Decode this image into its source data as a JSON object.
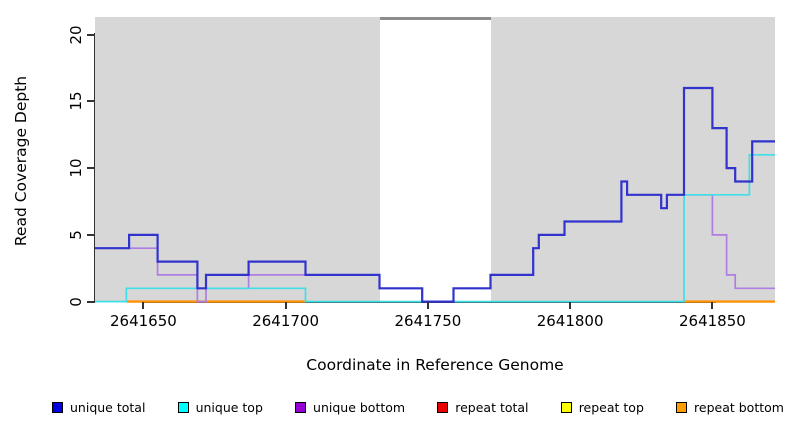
{
  "chart_data": {
    "type": "line",
    "subtype": "step-coverage-plot",
    "title": "",
    "xlabel": "Coordinate in Reference Genome",
    "ylabel": "Read Coverage Depth",
    "xlim": [
      2641633,
      2641872
    ],
    "ylim": [
      0,
      21.3
    ],
    "grid": false,
    "plot_background": "#d7d7d7",
    "gap_region": {
      "start": 2641733,
      "end": 2641772,
      "fill": "#ffffff",
      "cap_color": "#8c8c8c"
    },
    "zero_line_color": "#90d790",
    "xticks": [
      2641650,
      2641700,
      2641750,
      2641800,
      2641850
    ],
    "xtick_labels": [
      "2641650",
      "2641700",
      "2641750",
      "2641800",
      "2641850"
    ],
    "yticks": [
      0,
      5,
      10,
      15,
      20
    ],
    "ytick_labels": [
      "0",
      "5",
      "10",
      "15",
      "20"
    ],
    "series": [
      {
        "name": "unique total",
        "line_color": "#3232cd",
        "line_width": 2.2,
        "steps": [
          [
            2641633,
            4
          ],
          [
            2641645,
            5
          ],
          [
            2641655,
            3
          ],
          [
            2641669,
            1
          ],
          [
            2641672,
            2
          ],
          [
            2641687,
            3
          ],
          [
            2641707,
            2
          ],
          [
            2641733,
            1
          ],
          [
            2641748,
            0
          ],
          [
            2641759,
            1
          ],
          [
            2641772,
            2
          ],
          [
            2641787,
            4
          ],
          [
            2641789,
            5
          ],
          [
            2641798,
            6
          ],
          [
            2641818,
            9
          ],
          [
            2641820,
            8
          ],
          [
            2641832,
            7
          ],
          [
            2641834,
            8
          ],
          [
            2641840,
            16
          ],
          [
            2641850,
            13
          ],
          [
            2641855,
            10
          ],
          [
            2641858,
            9
          ],
          [
            2641864,
            12
          ]
        ]
      },
      {
        "name": "unique top",
        "line_color": "#3fdfe8",
        "line_width": 1.7,
        "steps": [
          [
            2641633,
            0
          ],
          [
            2641644,
            1
          ],
          [
            2641707,
            0
          ],
          [
            2641840,
            8
          ],
          [
            2641863,
            11
          ]
        ]
      },
      {
        "name": "unique bottom",
        "line_color": "#af7de4",
        "line_width": 1.7,
        "steps": [
          [
            2641633,
            4
          ],
          [
            2641655,
            2
          ],
          [
            2641669,
            0
          ],
          [
            2641672,
            1
          ],
          [
            2641687,
            2
          ],
          [
            2641733,
            1
          ],
          [
            2641748,
            0
          ],
          [
            2641759,
            1
          ],
          [
            2641772,
            2
          ],
          [
            2641787,
            4
          ],
          [
            2641789,
            5
          ],
          [
            2641798,
            6
          ],
          [
            2641818,
            9
          ],
          [
            2641820,
            8
          ],
          [
            2641832,
            7
          ],
          [
            2641834,
            8
          ],
          [
            2641850,
            5
          ],
          [
            2641855,
            2
          ],
          [
            2641858,
            1
          ]
        ]
      },
      {
        "name": "repeat total",
        "line_color": "#e80000",
        "line_width": 1.7,
        "steps": [
          [
            2641633,
            0
          ]
        ]
      },
      {
        "name": "repeat top",
        "line_color": "#ffff00",
        "line_width": 1.7,
        "steps": [
          [
            2641633,
            0
          ]
        ]
      },
      {
        "name": "repeat bottom",
        "line_color": "#ff9305",
        "line_width": 2.4,
        "steps": [
          [
            2641633,
            0
          ]
        ],
        "visible_zero_ranges": [
          [
            2641644,
            2641707
          ],
          [
            2641840,
            2641872
          ]
        ]
      }
    ],
    "legend": {
      "position": "bottom",
      "items": [
        {
          "label": "unique total",
          "swatch_color": "#0000e0"
        },
        {
          "label": "unique top",
          "swatch_color": "#00ffff"
        },
        {
          "label": "unique bottom",
          "swatch_color": "#9400d3"
        },
        {
          "label": "repeat total",
          "swatch_color": "#e80000"
        },
        {
          "label": "repeat top",
          "swatch_color": "#ffff00"
        },
        {
          "label": "repeat bottom",
          "swatch_color": "#ff9d00"
        }
      ]
    }
  }
}
